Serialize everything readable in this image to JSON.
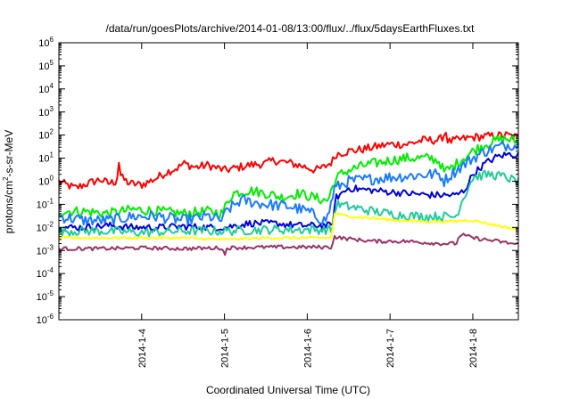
{
  "chart_data": {
    "type": "line",
    "title": "/data/run/goesPlots/archive/2014-01-08/13:00/flux/../flux/5daysEarthFluxes.txt",
    "xlabel": "Coordinated Universal Time (UTC)",
    "ylabel": {
      "base": "protons/cm",
      "sup": "2",
      "rest": "-s-sr-MeV"
    },
    "xlim": [
      3.0,
      8.55
    ],
    "ylim": [
      1e-06,
      1000000.0
    ],
    "yscale": "log",
    "x_ticks": [
      {
        "value": 3.0,
        "label": ""
      },
      {
        "value": 4.0,
        "label": "2014-1-4"
      },
      {
        "value": 5.0,
        "label": "2014-1-5"
      },
      {
        "value": 6.0,
        "label": "2014-1-6"
      },
      {
        "value": 7.0,
        "label": "2014-1-7"
      },
      {
        "value": 8.0,
        "label": "2014-1-8"
      }
    ],
    "y_ticks": [
      {
        "exp": -6,
        "base": "10",
        "sup": "-6"
      },
      {
        "exp": -5,
        "base": "10",
        "sup": "-5"
      },
      {
        "exp": -4,
        "base": "10",
        "sup": "-4"
      },
      {
        "exp": -3,
        "base": "10",
        "sup": "-3"
      },
      {
        "exp": -2,
        "base": "10",
        "sup": "-2"
      },
      {
        "exp": -1,
        "base": "10",
        "sup": "-1"
      },
      {
        "exp": 0,
        "base": "10",
        "sup": "0"
      },
      {
        "exp": 1,
        "base": "10",
        "sup": "1"
      },
      {
        "exp": 2,
        "base": "10",
        "sup": "2"
      },
      {
        "exp": 3,
        "base": "10",
        "sup": "3"
      },
      {
        "exp": 4,
        "base": "10",
        "sup": "4"
      },
      {
        "exp": 5,
        "base": "10",
        "sup": "5"
      },
      {
        "exp": 6,
        "base": "10",
        "sup": "6"
      }
    ],
    "grid": false,
    "legend": false,
    "series": [
      {
        "color": "#ff0000",
        "noise": 0.18,
        "x": [
          3.0,
          3.05,
          3.2,
          3.3,
          3.5,
          3.6,
          3.7,
          3.72,
          3.75,
          3.85,
          4.0,
          4.1,
          4.2,
          4.3,
          4.45,
          4.5,
          4.65,
          4.8,
          5.0,
          5.1,
          5.3,
          5.5,
          5.6,
          5.8,
          6.0,
          6.1,
          6.2,
          6.3,
          6.35,
          6.5,
          6.7,
          6.8,
          7.0,
          7.2,
          7.4,
          7.6,
          7.65,
          7.68,
          7.7,
          7.75,
          7.8,
          7.9,
          8.0,
          8.2,
          8.4,
          8.55
        ],
        "y": [
          1.0,
          0.8,
          0.5,
          0.7,
          1.2,
          0.8,
          1.0,
          10.0,
          1.5,
          0.8,
          0.7,
          1.0,
          1.5,
          2.5,
          4.0,
          6.0,
          4.0,
          5.0,
          3.0,
          3.5,
          5.0,
          6.0,
          8.0,
          6.0,
          4.0,
          3.0,
          4.0,
          7.0,
          15.0,
          20.0,
          25.0,
          30.0,
          40.0,
          40.0,
          60.0,
          60.0,
          100.0,
          150.0,
          50.0,
          55.0,
          60.0,
          70.0,
          80.0,
          90.0,
          100.0,
          80.0
        ]
      },
      {
        "color": "#00ee00",
        "noise": 0.22,
        "x": [
          3.0,
          3.3,
          3.6,
          3.9,
          4.2,
          4.5,
          4.8,
          4.98,
          5.02,
          5.1,
          5.3,
          5.5,
          5.7,
          5.9,
          6.2,
          6.25,
          6.33,
          6.4,
          6.5,
          6.7,
          7.0,
          7.2,
          7.5,
          7.6,
          7.65,
          7.75,
          7.85,
          8.0,
          8.15,
          8.3,
          8.4,
          8.55
        ],
        "y": [
          0.05,
          0.05,
          0.04,
          0.06,
          0.05,
          0.04,
          0.05,
          0.04,
          0.1,
          0.3,
          0.4,
          0.3,
          0.2,
          0.3,
          0.15,
          0.15,
          1.0,
          2.0,
          3.0,
          5.0,
          8.0,
          10.0,
          10.0,
          7.0,
          2.5,
          4.0,
          8.0,
          20.0,
          40.0,
          60.0,
          70.0,
          50.0
        ]
      },
      {
        "color": "#1a7bff",
        "noise": 0.25,
        "x": [
          3.0,
          3.3,
          3.6,
          3.9,
          4.2,
          4.5,
          4.8,
          4.98,
          5.02,
          5.2,
          5.5,
          5.8,
          6.0,
          6.2,
          6.25,
          6.33,
          6.5,
          7.0,
          7.5,
          7.6,
          7.65,
          7.7,
          7.8,
          8.0,
          8.15,
          8.3,
          8.45,
          8.55
        ],
        "y": [
          0.03,
          0.02,
          0.02,
          0.03,
          0.03,
          0.02,
          0.03,
          0.02,
          0.05,
          0.15,
          0.1,
          0.08,
          0.05,
          0.02,
          0.03,
          0.5,
          1.0,
          1.5,
          2.0,
          2.0,
          1.0,
          1.5,
          3.0,
          10.0,
          20.0,
          30.0,
          40.0,
          35.0
        ]
      },
      {
        "color": "#0000dd",
        "noise": 0.15,
        "x": [
          3.0,
          3.3,
          3.6,
          3.9,
          4.2,
          4.5,
          4.8,
          5.0,
          5.3,
          5.6,
          5.9,
          6.2,
          6.3,
          6.35,
          6.5,
          6.8,
          7.2,
          7.5,
          7.8,
          7.9,
          8.0,
          8.15,
          8.3,
          8.45,
          8.55
        ],
        "y": [
          0.01,
          0.01,
          0.012,
          0.01,
          0.01,
          0.011,
          0.01,
          0.01,
          0.015,
          0.015,
          0.012,
          0.012,
          0.012,
          0.2,
          0.5,
          0.4,
          0.3,
          0.25,
          0.25,
          0.4,
          2.0,
          6.0,
          12.0,
          15.0,
          14.0
        ]
      },
      {
        "color": "#22cc99",
        "noise": 0.2,
        "x": [
          3.0,
          3.5,
          4.0,
          4.5,
          5.0,
          5.5,
          6.0,
          6.3,
          6.35,
          6.5,
          6.8,
          7.1,
          7.4,
          7.8,
          7.85,
          8.0,
          8.2,
          8.4,
          8.55
        ],
        "y": [
          0.007,
          0.007,
          0.006,
          0.007,
          0.007,
          0.008,
          0.008,
          0.008,
          0.1,
          0.08,
          0.05,
          0.035,
          0.03,
          0.03,
          0.1,
          1.5,
          2.0,
          1.5,
          0.9
        ]
      },
      {
        "color": "#ffff00",
        "noise": 0.05,
        "x": [
          3.0,
          3.5,
          4.0,
          4.5,
          5.0,
          5.5,
          6.0,
          6.3,
          6.32,
          6.34,
          6.5,
          6.8,
          7.1,
          7.4,
          7.8,
          7.85,
          8.0,
          8.3,
          8.55
        ],
        "y": [
          0.0035,
          0.0035,
          0.0035,
          0.0035,
          0.003,
          0.0035,
          0.0035,
          0.0035,
          0.04,
          0.04,
          0.03,
          0.025,
          0.02,
          0.018,
          0.018,
          0.02,
          0.02,
          0.012,
          0.008
        ]
      },
      {
        "color": "#993366",
        "noise": 0.08,
        "x": [
          3.0,
          3.5,
          4.0,
          4.5,
          4.98,
          5.0,
          5.02,
          5.5,
          6.0,
          6.3,
          6.32,
          6.4,
          6.8,
          7.2,
          7.6,
          7.8,
          7.85,
          8.0,
          8.3,
          8.55
        ],
        "y": [
          0.0012,
          0.0012,
          0.0013,
          0.0012,
          0.0013,
          0.0004,
          0.0013,
          0.0014,
          0.0014,
          0.0014,
          0.004,
          0.0035,
          0.0025,
          0.0025,
          0.002,
          0.002,
          0.005,
          0.0035,
          0.0025,
          0.0018
        ]
      }
    ]
  }
}
